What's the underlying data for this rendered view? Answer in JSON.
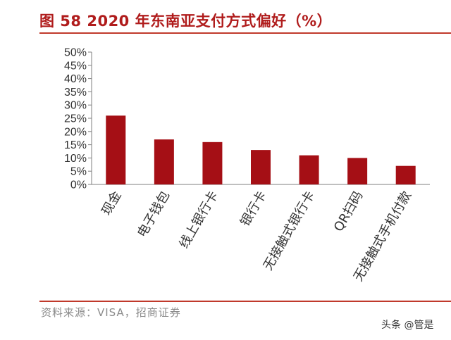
{
  "title": "图 58 2020 年东南亚支付方式偏好（%）",
  "source": "资料来源：VISA，招商证券",
  "watermark": "头条 @管是",
  "chart_data": {
    "type": "bar",
    "title": "图 58 2020 年东南亚支付方式偏好（%）",
    "categories": [
      "现金",
      "电子钱包",
      "线上银行卡",
      "银行卡",
      "无接触式银行卡",
      "QR扫码",
      "无接触式手机付款"
    ],
    "values": [
      26,
      17,
      16,
      13,
      11,
      10,
      7
    ],
    "ylim": [
      0,
      50
    ],
    "yticks": [
      "0%",
      "5%",
      "10%",
      "15%",
      "20%",
      "25%",
      "30%",
      "35%",
      "40%",
      "45%",
      "50%"
    ],
    "bar_color": "#a50f15",
    "grid": false,
    "legend": "none"
  }
}
